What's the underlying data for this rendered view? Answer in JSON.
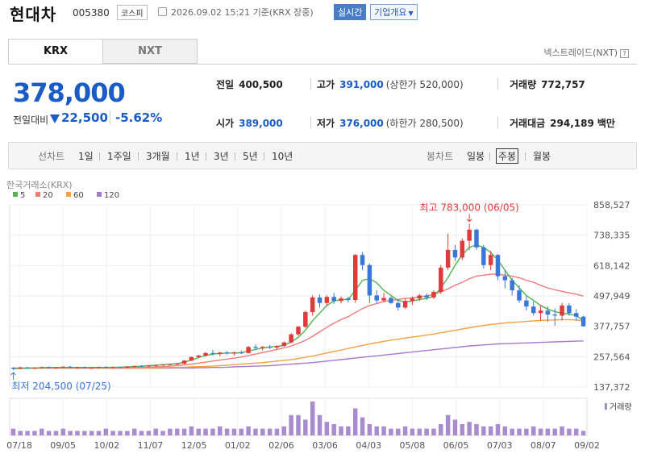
{
  "header": {
    "name": "현대차",
    "code": "005380",
    "market": "코스피",
    "timestamp": "2026.09.02 15:21  기준(KRX 장중)",
    "realtime": "실시간",
    "company_overview": "기업개요"
  },
  "tabs": {
    "krx": "KRX",
    "nxt": "NXT",
    "nxt_link": "넥스트레이드(NXT)"
  },
  "quote": {
    "price": "378,000",
    "change_label": "전일대비",
    "change": "22,500",
    "change_pct": "-5.62%",
    "prev_close_label": "전일",
    "prev_close": "400,500",
    "high_label": "고가",
    "high": "391,000",
    "upper_limit": "(상한가 520,000)",
    "volume_label": "거래량",
    "volume": "772,757",
    "open_label": "시가",
    "open": "389,000",
    "low_label": "저가",
    "low": "376,000",
    "lower_limit": "(하한가 280,500)",
    "value_label": "거래대금",
    "value": "294,189",
    "value_unit": "백만"
  },
  "periods": {
    "line_label": "선차트",
    "items": [
      "1일",
      "1주일",
      "3개월",
      "1년",
      "3년",
      "5년",
      "10년"
    ],
    "candle_label": "봉차트",
    "candle_items": [
      "일봉",
      "주봉",
      "월봉"
    ],
    "selected": "주봉"
  },
  "colors": {
    "up": "#e03a3a",
    "down": "#3a78d8",
    "ma5": "#4cb84c",
    "ma20": "#f27a7a",
    "ma60": "#f5a142",
    "ma120": "#a679d0",
    "volume": "#a98bd0"
  },
  "chart_data": {
    "type": "candlestick",
    "source_label": "한국거래소(KRX)",
    "legend": [
      {
        "name": "5",
        "color": "#4cb84c"
      },
      {
        "name": "20",
        "color": "#f27a7a"
      },
      {
        "name": "60",
        "color": "#f5a142"
      },
      {
        "name": "120",
        "color": "#a679d0"
      }
    ],
    "volume_label": "거래량",
    "y_ticks": [
      "858,527",
      "738,335",
      "618,142",
      "497,949",
      "377,757",
      "257,564",
      "137,372"
    ],
    "y_tick_values": [
      858527,
      738335,
      618142,
      497949,
      377757,
      257564,
      137372
    ],
    "ylim": [
      137372,
      858527
    ],
    "x_ticks": [
      "07/18",
      "09/05",
      "10/02",
      "11/07",
      "12/05",
      "01/02",
      "02/06",
      "03/06",
      "04/03",
      "05/08",
      "06/05",
      "07/03",
      "08/07",
      "09/02"
    ],
    "high_annotation": "최고 783,000 (06/05)",
    "low_annotation": "최저 204,500 (07/25)",
    "candles": [
      [
        214000,
        216000,
        204500,
        210000
      ],
      [
        210000,
        218000,
        208000,
        215000
      ],
      [
        215000,
        217000,
        210000,
        212000
      ],
      [
        212000,
        216000,
        209000,
        214000
      ],
      [
        214000,
        218000,
        211000,
        216000
      ],
      [
        216000,
        219000,
        212000,
        213000
      ],
      [
        213000,
        217000,
        210000,
        215000
      ],
      [
        215000,
        220000,
        212000,
        218000
      ],
      [
        218000,
        221000,
        213000,
        214000
      ],
      [
        214000,
        218000,
        211000,
        216000
      ],
      [
        216000,
        219000,
        212000,
        213000
      ],
      [
        213000,
        216000,
        210000,
        214000
      ],
      [
        214000,
        218000,
        211000,
        217000
      ],
      [
        217000,
        220000,
        213000,
        215000
      ],
      [
        215000,
        218000,
        212000,
        216000
      ],
      [
        216000,
        219000,
        213000,
        214000
      ],
      [
        214000,
        220000,
        212000,
        218000
      ],
      [
        218000,
        222000,
        215000,
        221000
      ],
      [
        221000,
        224000,
        217000,
        219000
      ],
      [
        219000,
        223000,
        216000,
        222000
      ],
      [
        222000,
        226000,
        218000,
        224000
      ],
      [
        224000,
        228000,
        221000,
        226000
      ],
      [
        226000,
        230000,
        223000,
        228000
      ],
      [
        228000,
        232000,
        224000,
        230000
      ],
      [
        230000,
        244000,
        228000,
        242000
      ],
      [
        242000,
        258000,
        240000,
        256000
      ],
      [
        256000,
        266000,
        252000,
        262000
      ],
      [
        262000,
        276000,
        258000,
        272000
      ],
      [
        272000,
        284000,
        262000,
        268000
      ],
      [
        268000,
        276000,
        260000,
        274000
      ],
      [
        274000,
        280000,
        266000,
        270000
      ],
      [
        270000,
        278000,
        262000,
        274000
      ],
      [
        274000,
        282000,
        268000,
        272000
      ],
      [
        272000,
        300000,
        270000,
        296000
      ],
      [
        296000,
        306000,
        286000,
        292000
      ],
      [
        292000,
        300000,
        282000,
        296000
      ],
      [
        296000,
        304000,
        288000,
        294000
      ],
      [
        294000,
        302000,
        286000,
        300000
      ],
      [
        300000,
        318000,
        296000,
        314000
      ],
      [
        314000,
        350000,
        310000,
        346000
      ],
      [
        346000,
        380000,
        340000,
        376000
      ],
      [
        376000,
        440000,
        370000,
        434000
      ],
      [
        434000,
        500000,
        420000,
        492000
      ],
      [
        492000,
        504000,
        452000,
        470000
      ],
      [
        470000,
        500000,
        458000,
        494000
      ],
      [
        494000,
        510000,
        466000,
        478000
      ],
      [
        478000,
        496000,
        468000,
        488000
      ],
      [
        488000,
        494000,
        472000,
        482000
      ],
      [
        482000,
        664000,
        470000,
        660000
      ],
      [
        660000,
        672000,
        600000,
        620000
      ],
      [
        620000,
        626000,
        470000,
        500000
      ],
      [
        500000,
        520000,
        470000,
        480000
      ],
      [
        480000,
        510000,
        472000,
        490000
      ],
      [
        490000,
        496000,
        466000,
        470000
      ],
      [
        470000,
        486000,
        440000,
        452000
      ],
      [
        452000,
        486000,
        446000,
        478000
      ],
      [
        478000,
        496000,
        462000,
        488000
      ],
      [
        488000,
        506000,
        478000,
        500000
      ],
      [
        500000,
        508000,
        482000,
        492000
      ],
      [
        492000,
        520000,
        486000,
        514000
      ],
      [
        514000,
        620000,
        506000,
        610000
      ],
      [
        610000,
        744000,
        600000,
        680000
      ],
      [
        680000,
        700000,
        636000,
        650000
      ],
      [
        650000,
        726000,
        640000,
        716000
      ],
      [
        716000,
        783000,
        680000,
        760000
      ],
      [
        760000,
        764000,
        680000,
        690000
      ],
      [
        690000,
        700000,
        606000,
        620000
      ],
      [
        620000,
        676000,
        600000,
        660000
      ],
      [
        660000,
        664000,
        560000,
        576000
      ],
      [
        576000,
        600000,
        528000,
        560000
      ],
      [
        560000,
        570000,
        500000,
        520000
      ],
      [
        520000,
        540000,
        470000,
        480000
      ],
      [
        480000,
        500000,
        440000,
        456000
      ],
      [
        456000,
        476000,
        420000,
        430000
      ],
      [
        430000,
        460000,
        400000,
        440000
      ],
      [
        440000,
        456000,
        396000,
        424000
      ],
      [
        424000,
        448000,
        380000,
        420000
      ],
      [
        420000,
        470000,
        400000,
        460000
      ],
      [
        460000,
        470000,
        420000,
        430000
      ],
      [
        430000,
        446000,
        400000,
        416000
      ],
      [
        416000,
        420000,
        376000,
        378000
      ]
    ],
    "ma5": [
      210000,
      211000,
      212000,
      213000,
      214000,
      215000,
      215000,
      215000,
      215000,
      215000,
      215000,
      215000,
      215000,
      215000,
      216000,
      216000,
      217000,
      218000,
      220000,
      222000,
      224000,
      226000,
      228000,
      230000,
      236000,
      244000,
      254000,
      262000,
      268000,
      270000,
      272000,
      272000,
      273000,
      280000,
      286000,
      292000,
      296000,
      298000,
      302000,
      316000,
      334000,
      362000,
      400000,
      430000,
      460000,
      478000,
      484000,
      484000,
      520000,
      560000,
      566000,
      550000,
      520000,
      500000,
      480000,
      474000,
      478000,
      484000,
      488000,
      496000,
      530000,
      570000,
      620000,
      660000,
      690000,
      700000,
      690000,
      670000,
      640000,
      600000,
      560000,
      530000,
      500000,
      480000,
      460000,
      446000,
      436000,
      430000,
      426000,
      420000,
      400000
    ],
    "ma20": [
      212000,
      212000,
      212000,
      212000,
      213000,
      213000,
      213000,
      213000,
      213000,
      213000,
      213000,
      213000,
      213000,
      214000,
      214000,
      214000,
      214000,
      215000,
      215000,
      216000,
      217000,
      218000,
      220000,
      222000,
      225000,
      228000,
      232000,
      236000,
      240000,
      244000,
      248000,
      252000,
      256000,
      262000,
      268000,
      274000,
      280000,
      286000,
      292000,
      300000,
      310000,
      322000,
      338000,
      356000,
      374000,
      390000,
      404000,
      416000,
      432000,
      448000,
      460000,
      468000,
      476000,
      480000,
      484000,
      488000,
      490000,
      494000,
      498000,
      504000,
      514000,
      526000,
      540000,
      552000,
      566000,
      576000,
      580000,
      584000,
      584000,
      580000,
      576000,
      570000,
      560000,
      552000,
      540000,
      530000,
      522000,
      516000,
      510000,
      505000,
      497000
    ],
    "ma60": [
      212000,
      212000,
      212000,
      212000,
      212000,
      212000,
      212000,
      212000,
      212000,
      212000,
      212000,
      212000,
      212000,
      212000,
      212000,
      212000,
      212000,
      213000,
      213000,
      213000,
      214000,
      214000,
      215000,
      215000,
      216000,
      217000,
      218000,
      219000,
      220000,
      222000,
      224000,
      226000,
      228000,
      230000,
      232000,
      234000,
      237000,
      240000,
      243000,
      246000,
      250000,
      255000,
      260000,
      266000,
      272000,
      278000,
      284000,
      290000,
      296000,
      302000,
      308000,
      313000,
      318000,
      323000,
      327000,
      331000,
      335000,
      339000,
      343000,
      347000,
      352000,
      357000,
      362000,
      367000,
      372000,
      377000,
      381000,
      385000,
      388000,
      391000,
      393000,
      395000,
      397000,
      399000,
      401000,
      402000,
      403000,
      404000,
      404000,
      403000,
      400000
    ],
    "ma120": [
      212000,
      212000,
      212000,
      212000,
      212000,
      212000,
      212000,
      212000,
      212000,
      212000,
      212000,
      212000,
      212000,
      212000,
      212000,
      212000,
      212000,
      212000,
      212000,
      212000,
      212000,
      212000,
      212000,
      213000,
      213000,
      213000,
      214000,
      214000,
      215000,
      215000,
      216000,
      217000,
      218000,
      219000,
      220000,
      221000,
      222000,
      224000,
      226000,
      228000,
      230000,
      232000,
      234000,
      237000,
      240000,
      243000,
      246000,
      249000,
      252000,
      255000,
      258000,
      261000,
      264000,
      267000,
      270000,
      273000,
      276000,
      279000,
      282000,
      285000,
      288000,
      291000,
      294000,
      297000,
      300000,
      302000,
      304000,
      306000,
      308000,
      309000,
      310000,
      311000,
      312000,
      313000,
      314000,
      315000,
      316000,
      317000,
      318000,
      319000,
      320000
    ],
    "volume": [
      3,
      2,
      2,
      2,
      3,
      2,
      2,
      3,
      2,
      2,
      2,
      2,
      2,
      3,
      2,
      2,
      2,
      3,
      2,
      2,
      3,
      2,
      3,
      3,
      3,
      4,
      3,
      3,
      3,
      4,
      3,
      3,
      3,
      4,
      3,
      3,
      3,
      3,
      4,
      9,
      9,
      7,
      15,
      9,
      6,
      5,
      4,
      4,
      12,
      8,
      5,
      4,
      4,
      3,
      3,
      4,
      3,
      3,
      3,
      3,
      5,
      9,
      7,
      5,
      6,
      5,
      4,
      4,
      5,
      4,
      3,
      3,
      3,
      4,
      3,
      3,
      3,
      4,
      3,
      3,
      2
    ]
  }
}
